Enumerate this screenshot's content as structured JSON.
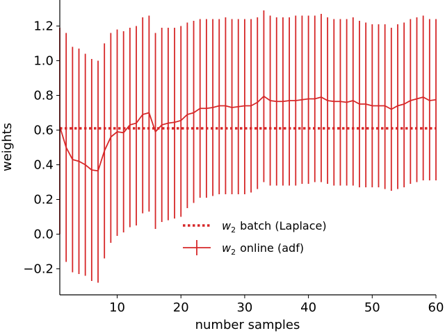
{
  "chart_data": {
    "type": "line",
    "title": "",
    "xlabel": "number samples",
    "ylabel": "weights",
    "xlim": [
      1,
      60
    ],
    "ylim": [
      -0.35,
      1.35
    ],
    "xticks": [
      10,
      20,
      30,
      40,
      50,
      60
    ],
    "xtick_labels": [
      "10",
      "20",
      "30",
      "40",
      "50",
      "60"
    ],
    "yticks": [
      -0.2,
      0.0,
      0.2,
      0.4,
      0.6,
      0.8,
      1.0,
      1.2
    ],
    "ytick_labels": [
      "−0.2",
      "0.0",
      "0.2",
      "0.4",
      "0.6",
      "0.8",
      "1.0",
      "1.2"
    ],
    "grid": false,
    "legend_position": "lower-center",
    "colors": {
      "series": "#d62728",
      "axis": "#000000",
      "background": "#ffffff"
    },
    "series": [
      {
        "name": "w₂ batch (Laplace)",
        "legend": {
          "symbol": "w",
          "subscript": "2",
          "text": "batch (Laplace)"
        },
        "style": "dotted",
        "x": [
          1,
          60
        ],
        "y": [
          0.61,
          0.61
        ]
      },
      {
        "name": "w₂ online (adf)",
        "legend": {
          "symbol": "w",
          "subscript": "2",
          "text": "online (adf)"
        },
        "style": "solid-errorbar",
        "x": [
          1,
          2,
          3,
          4,
          5,
          6,
          7,
          8,
          9,
          10,
          11,
          12,
          13,
          14,
          15,
          16,
          17,
          18,
          19,
          20,
          21,
          22,
          23,
          24,
          25,
          26,
          27,
          28,
          29,
          30,
          31,
          32,
          33,
          34,
          35,
          36,
          37,
          38,
          39,
          40,
          41,
          42,
          43,
          44,
          45,
          46,
          47,
          48,
          49,
          50,
          51,
          52,
          53,
          54,
          55,
          56,
          57,
          58,
          59,
          60
        ],
        "y": [
          0.62,
          0.5,
          0.43,
          0.42,
          0.4,
          0.37,
          0.365,
          0.48,
          0.56,
          0.59,
          0.585,
          0.63,
          0.64,
          0.69,
          0.7,
          0.59,
          0.63,
          0.64,
          0.645,
          0.655,
          0.69,
          0.7,
          0.725,
          0.725,
          0.73,
          0.74,
          0.74,
          0.73,
          0.735,
          0.74,
          0.74,
          0.76,
          0.795,
          0.77,
          0.765,
          0.765,
          0.77,
          0.77,
          0.775,
          0.78,
          0.78,
          0.79,
          0.77,
          0.765,
          0.765,
          0.76,
          0.77,
          0.75,
          0.75,
          0.74,
          0.74,
          0.74,
          0.72,
          0.74,
          0.75,
          0.77,
          0.78,
          0.79,
          0.77,
          0.775
        ],
        "error_low": [
          0.0,
          -0.16,
          -0.22,
          -0.23,
          -0.24,
          -0.27,
          -0.28,
          -0.14,
          -0.05,
          -0.01,
          0.01,
          0.04,
          0.05,
          0.12,
          0.13,
          0.03,
          0.07,
          0.08,
          0.09,
          0.1,
          0.15,
          0.18,
          0.21,
          0.21,
          0.22,
          0.23,
          0.23,
          0.23,
          0.23,
          0.23,
          0.24,
          0.26,
          0.3,
          0.28,
          0.28,
          0.28,
          0.28,
          0.28,
          0.29,
          0.29,
          0.3,
          0.3,
          0.29,
          0.28,
          0.28,
          0.28,
          0.28,
          0.27,
          0.27,
          0.27,
          0.27,
          0.26,
          0.25,
          0.26,
          0.27,
          0.29,
          0.3,
          0.31,
          0.31,
          0.31
        ],
        "error_high": [
          1.19,
          1.16,
          1.08,
          1.07,
          1.04,
          1.01,
          1.0,
          1.1,
          1.16,
          1.18,
          1.17,
          1.19,
          1.2,
          1.25,
          1.26,
          1.16,
          1.19,
          1.19,
          1.19,
          1.2,
          1.22,
          1.23,
          1.24,
          1.24,
          1.24,
          1.24,
          1.25,
          1.24,
          1.24,
          1.24,
          1.24,
          1.25,
          1.29,
          1.26,
          1.25,
          1.25,
          1.25,
          1.26,
          1.26,
          1.26,
          1.26,
          1.27,
          1.25,
          1.24,
          1.24,
          1.24,
          1.25,
          1.23,
          1.22,
          1.21,
          1.21,
          1.21,
          1.19,
          1.21,
          1.22,
          1.24,
          1.25,
          1.26,
          1.24,
          1.24
        ]
      }
    ]
  }
}
